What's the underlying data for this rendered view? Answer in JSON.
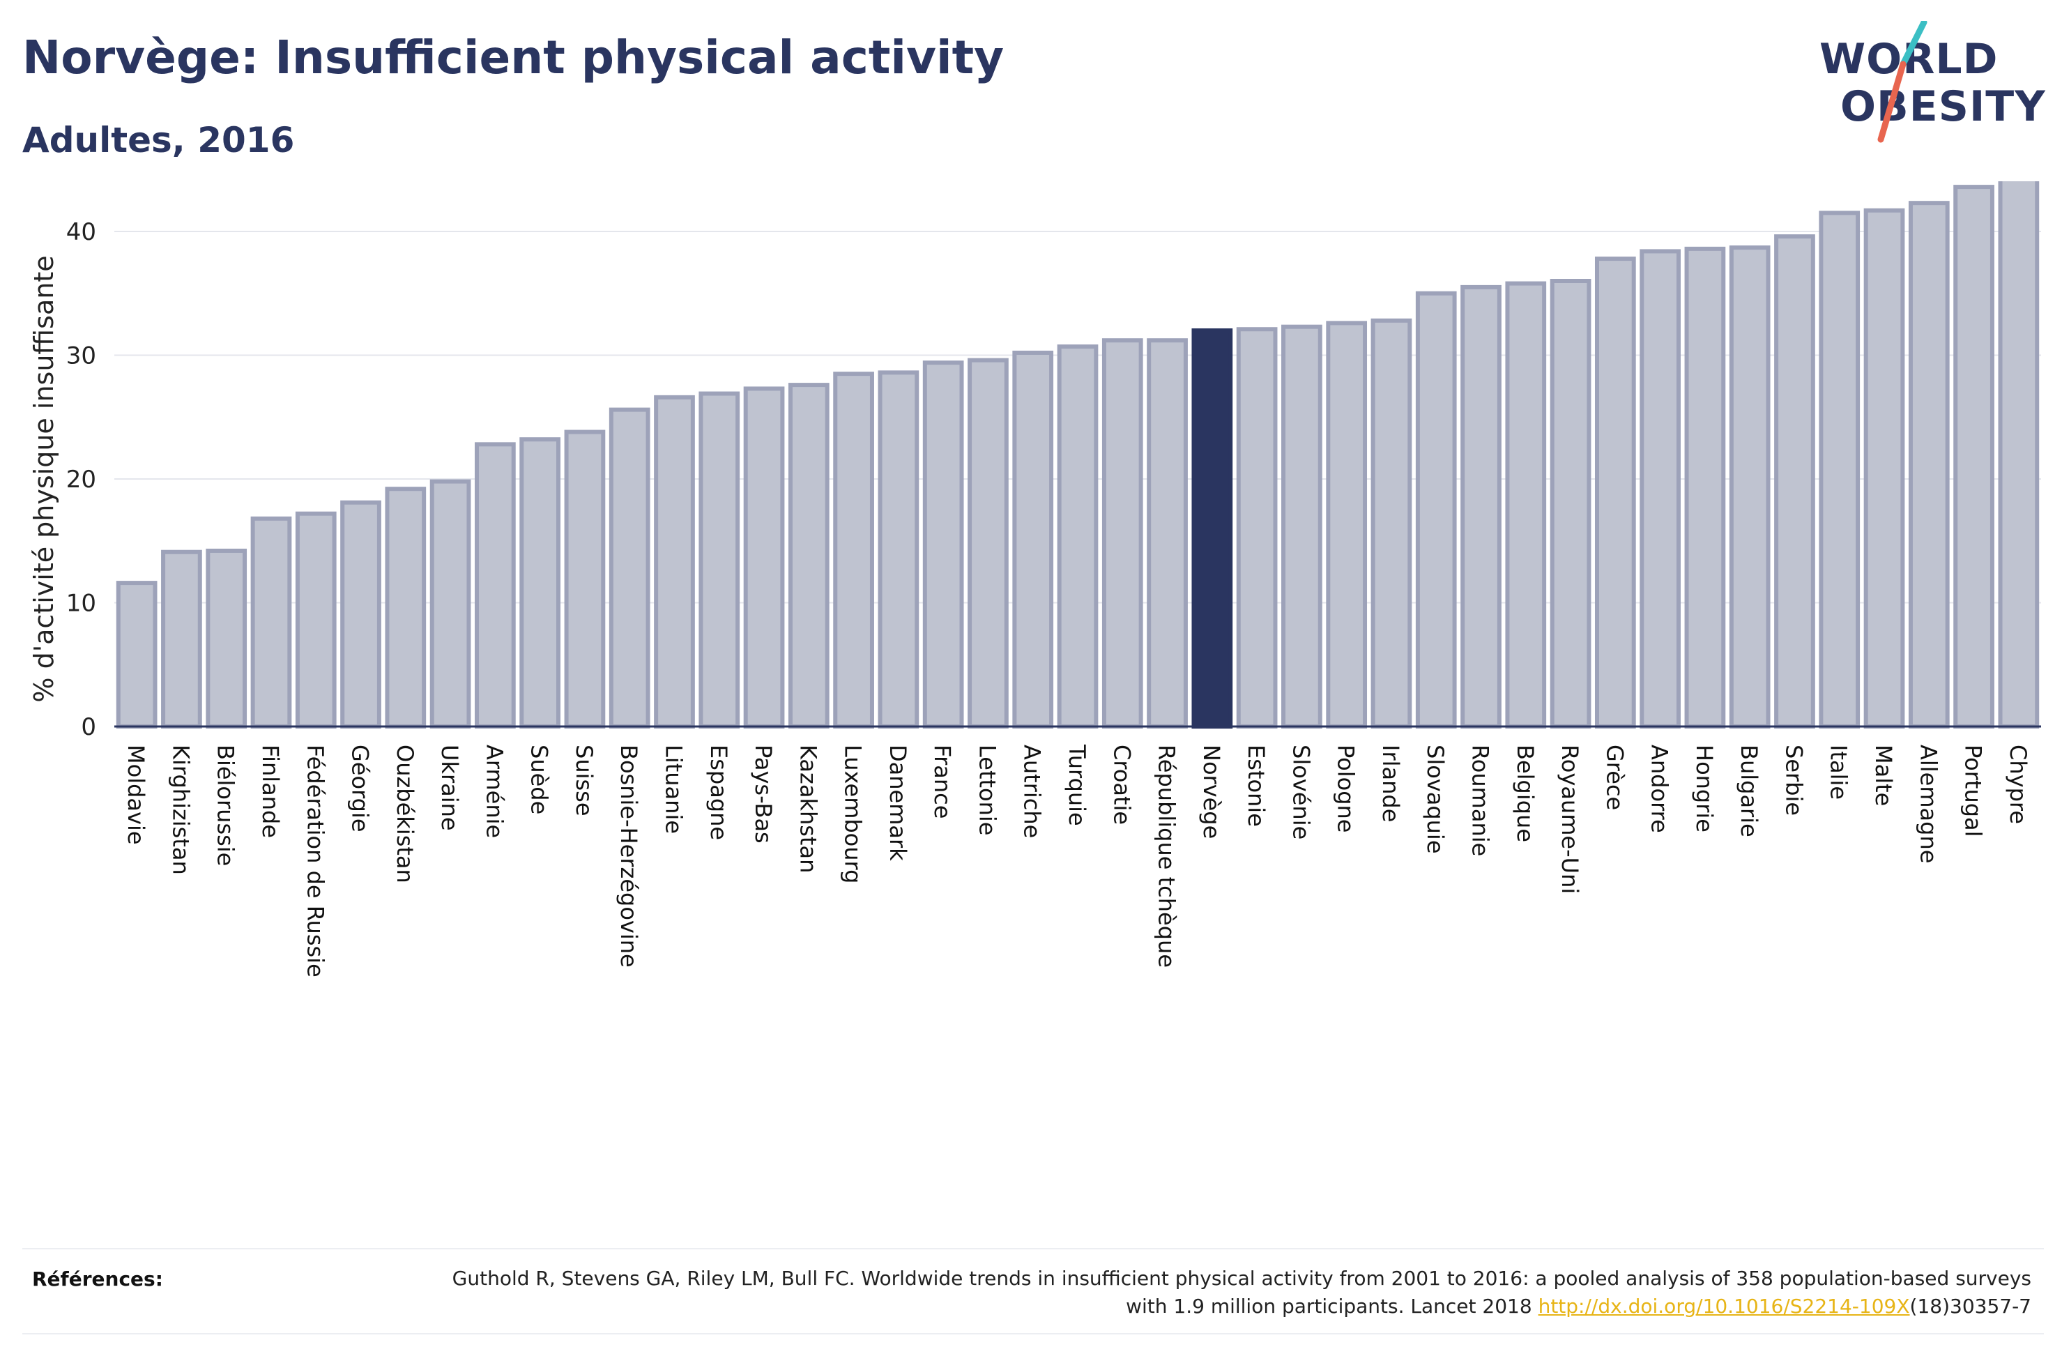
{
  "header": {
    "title": "Norvège: Insufficient physical activity",
    "subtitle": "Adultes, 2016"
  },
  "logo": {
    "line1": "WORLD",
    "line2": "OBESITY"
  },
  "colors": {
    "bar": "#bfc3d0",
    "bar_border": "#9da2b9",
    "highlight": "#2a3560",
    "text": "#2a3560",
    "logo_teal": "#3bbfc4",
    "logo_red": "#e8654f",
    "link": "#e7b416"
  },
  "chart_data": {
    "type": "bar",
    "title": "Norvège: Insufficient physical activity",
    "subtitle": "Adultes, 2016",
    "xlabel": "",
    "ylabel": "% d'activité physique insuffisante",
    "ylim": [
      0,
      45
    ],
    "yticks": [
      0,
      10,
      20,
      30,
      40
    ],
    "grid": true,
    "highlight": "Norvège",
    "categories": [
      "Moldavie",
      "Kirghizistan",
      "Biélorussie",
      "Finlande",
      "Fédération de Russie",
      "Géorgie",
      "Ouzbékistan",
      "Ukraine",
      "Arménie",
      "Suède",
      "Suisse",
      "Bosnie-Herzégovine",
      "Lituanie",
      "Espagne",
      "Pays-Bas",
      "Kazakhstan",
      "Luxembourg",
      "Danemark",
      "France",
      "Lettonie",
      "Autriche",
      "Turquie",
      "Croatie",
      "République tchèque",
      "Norvège",
      "Estonie",
      "Slovénie",
      "Pologne",
      "Irlande",
      "Slovaquie",
      "Roumanie",
      "Belgique",
      "Royaume-Uni",
      "Grèce",
      "Andorre",
      "Hongrie",
      "Bulgarie",
      "Serbie",
      "Italie",
      "Malte",
      "Allemagne",
      "Portugal",
      "Chypre"
    ],
    "values": [
      11.6,
      14.1,
      14.2,
      16.8,
      17.2,
      18.1,
      19.2,
      19.8,
      22.8,
      23.2,
      23.8,
      25.6,
      26.6,
      26.9,
      27.3,
      27.6,
      28.5,
      28.6,
      29.4,
      29.6,
      30.2,
      30.7,
      31.2,
      31.2,
      32.0,
      32.1,
      32.3,
      32.6,
      32.8,
      35.0,
      35.5,
      35.8,
      36.0,
      37.8,
      38.4,
      38.6,
      38.7,
      39.6,
      41.5,
      41.7,
      42.3,
      43.6,
      44.6
    ]
  },
  "references": {
    "label": "Références:",
    "text_before": "Guthold R, Stevens GA, Riley LM, Bull FC. Worldwide trends in insufficient physical activity from 2001 to 2016: a pooled analysis of 358 population-based surveys with 1.9 million participants. Lancet 2018 ",
    "link": "http://dx.doi.org/10.1016/S2214-109X",
    "text_after": "(18)30357-7"
  }
}
